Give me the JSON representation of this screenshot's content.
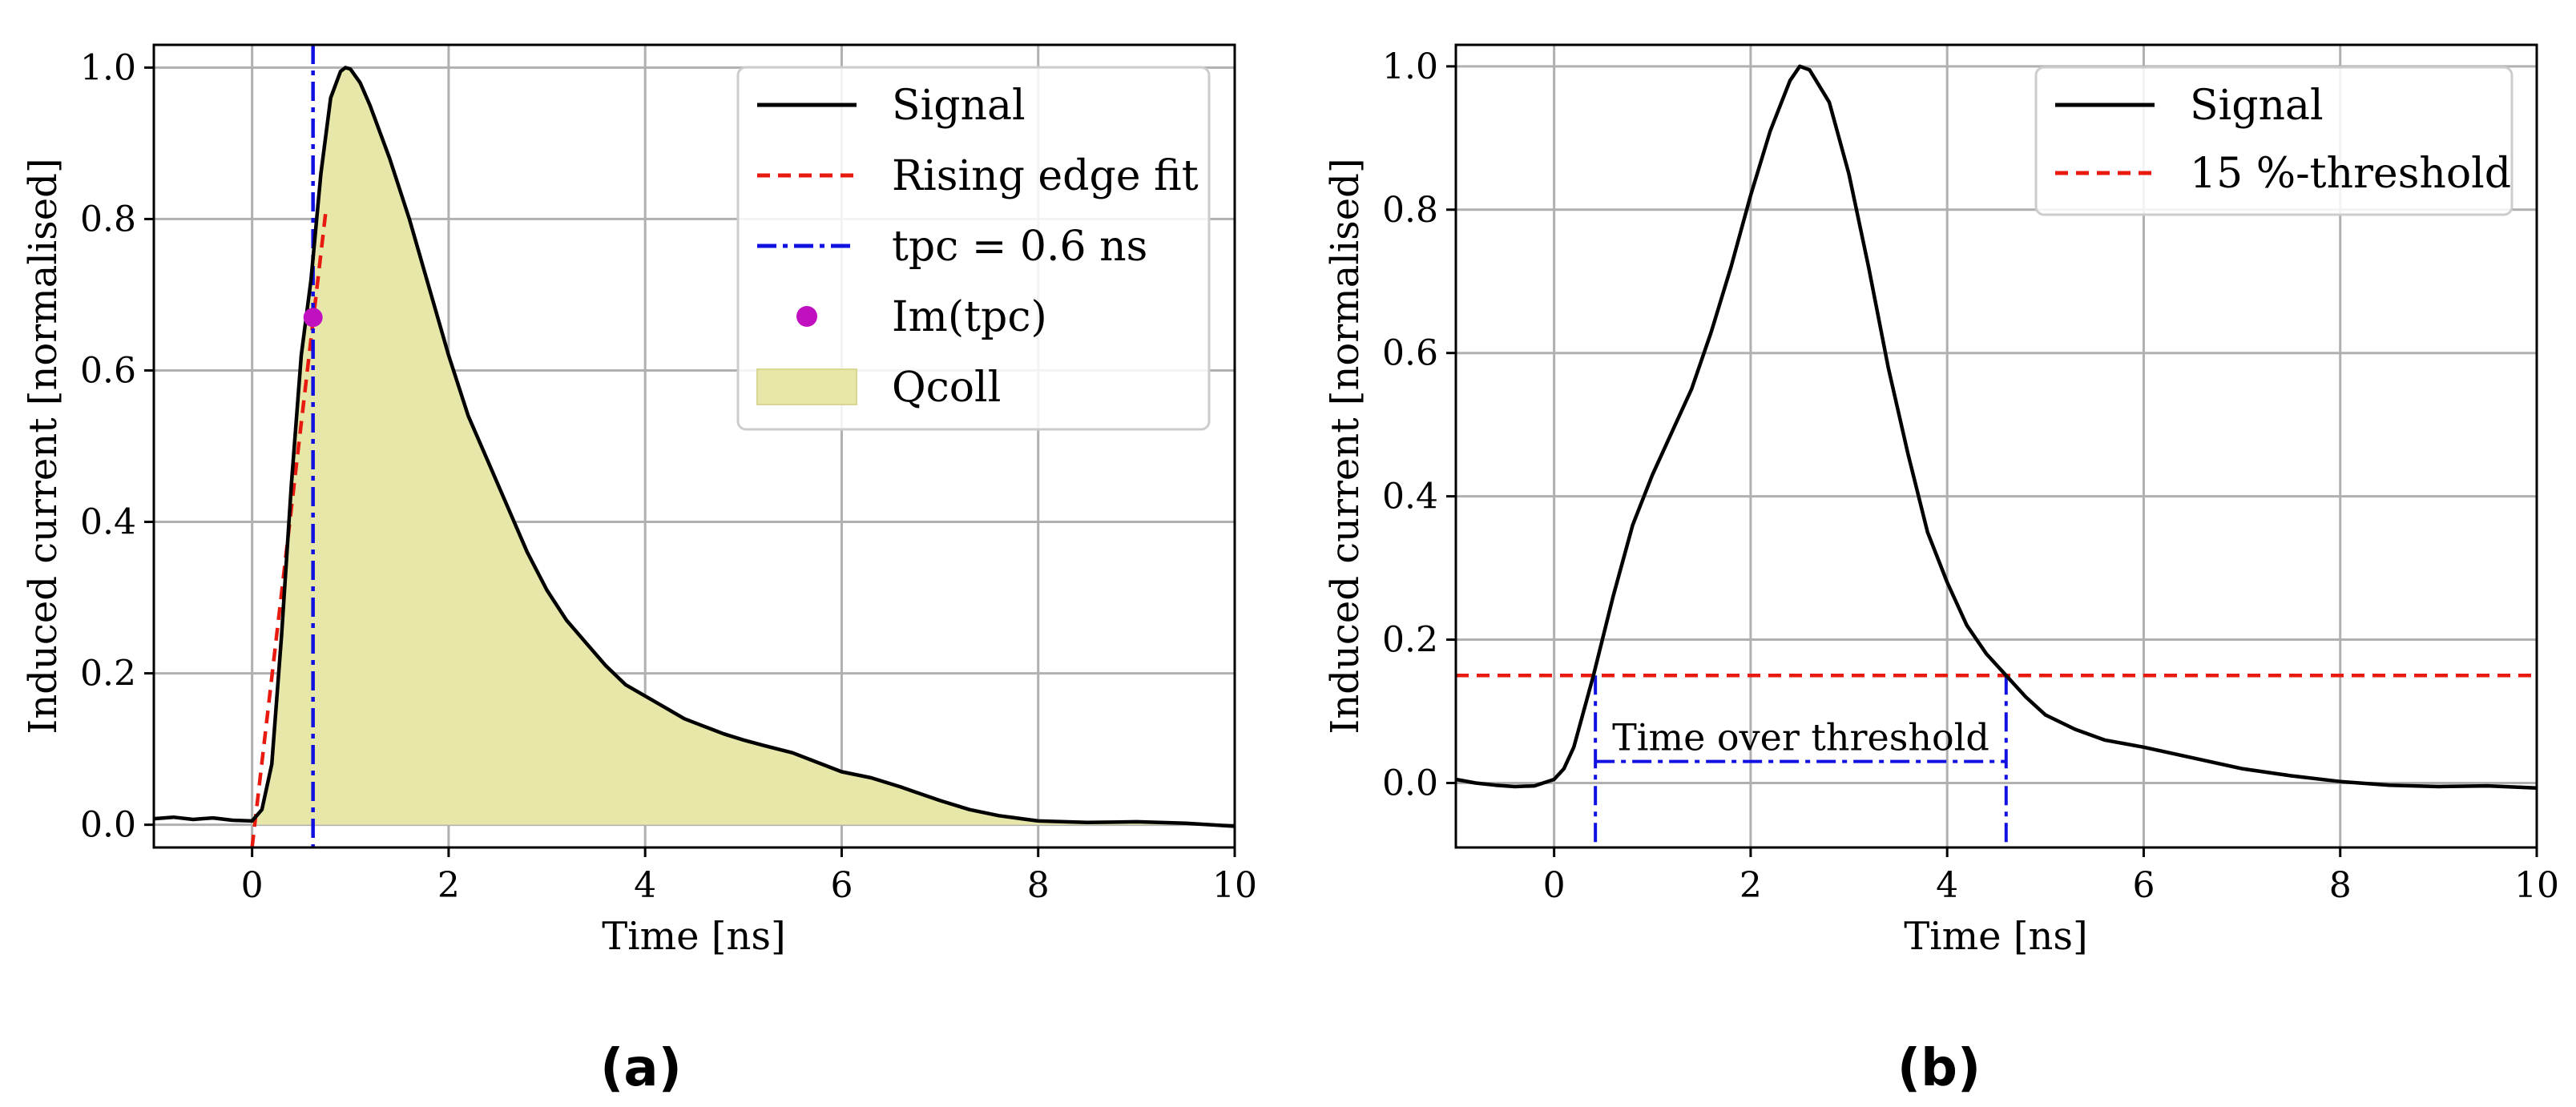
{
  "chart_data": [
    {
      "type": "line",
      "panel_label": "(a)",
      "xlabel": "Time [ns]",
      "ylabel": "Induced current [normalised]",
      "xlim": [
        -1,
        10
      ],
      "ylim": [
        -0.03,
        1.03
      ],
      "xticks": [
        0,
        2,
        4,
        6,
        8,
        10
      ],
      "yticks": [
        0.0,
        0.2,
        0.4,
        0.6,
        0.8,
        1.0
      ],
      "xtick_labels": [
        "0",
        "2",
        "4",
        "6",
        "8",
        "10"
      ],
      "ytick_labels": [
        "0.0",
        "0.2",
        "0.4",
        "0.6",
        "0.8",
        "1.0"
      ],
      "grid": true,
      "legend_position": "top-right",
      "series": [
        {
          "name": "Signal",
          "style": "solid",
          "color": "#000000",
          "x": [
            -1,
            -0.8,
            -0.6,
            -0.4,
            -0.2,
            0.0,
            0.1,
            0.2,
            0.3,
            0.4,
            0.5,
            0.6,
            0.7,
            0.8,
            0.9,
            0.95,
            1.0,
            1.1,
            1.2,
            1.4,
            1.6,
            1.8,
            2.0,
            2.2,
            2.4,
            2.6,
            2.8,
            3.0,
            3.2,
            3.4,
            3.6,
            3.8,
            4.0,
            4.2,
            4.4,
            4.6,
            4.8,
            5.0,
            5.2,
            5.5,
            5.8,
            6.0,
            6.3,
            6.6,
            7.0,
            7.3,
            7.6,
            8.0,
            8.5,
            9.0,
            9.5,
            10.0
          ],
          "y": [
            0.008,
            0.01,
            0.007,
            0.009,
            0.006,
            0.005,
            0.02,
            0.08,
            0.25,
            0.45,
            0.62,
            0.72,
            0.86,
            0.96,
            0.995,
            1.0,
            0.998,
            0.98,
            0.95,
            0.88,
            0.8,
            0.71,
            0.62,
            0.54,
            0.48,
            0.42,
            0.36,
            0.31,
            0.27,
            0.24,
            0.21,
            0.185,
            0.17,
            0.155,
            0.14,
            0.13,
            0.12,
            0.112,
            0.105,
            0.095,
            0.08,
            0.07,
            0.062,
            0.05,
            0.032,
            0.02,
            0.012,
            0.005,
            0.003,
            0.004,
            0.002,
            -0.002
          ]
        },
        {
          "name": "Rising edge fit",
          "style": "dashed",
          "color": "#e8190f",
          "x": [
            0.0,
            0.75
          ],
          "y": [
            -0.03,
            0.81
          ]
        }
      ],
      "fill": {
        "name": "Q_coll",
        "legend_label": "Qcoll",
        "color": "#e8e7aa",
        "under": "Signal"
      },
      "vline": {
        "name": "t_pc = 0.6 ns",
        "legend_label": "tpc = 0.6 ns",
        "x": 0.62,
        "style": "dashdot",
        "color": "#1010e0"
      },
      "marker": {
        "name": "I_m(t_pc)",
        "legend_label": "Im(tpc)",
        "x": 0.62,
        "y": 0.67,
        "color": "#c010c0"
      },
      "legend": [
        {
          "label": "Signal",
          "kind": "line-solid",
          "color": "#000000"
        },
        {
          "label": "Rising edge fit",
          "kind": "line-dashed",
          "color": "#e8190f"
        },
        {
          "label": "tpc = 0.6 ns",
          "kind": "line-dashdot",
          "color": "#1010e0"
        },
        {
          "label": "Im(tpc)",
          "kind": "marker",
          "color": "#c010c0"
        },
        {
          "label": "Qcoll",
          "kind": "fill",
          "color": "#e8e7aa"
        }
      ]
    },
    {
      "type": "line",
      "panel_label": "(b)",
      "xlabel": "Time [ns]",
      "ylabel": "Induced current [normalised]",
      "xlim": [
        -1,
        10
      ],
      "ylim": [
        -0.09,
        1.03
      ],
      "xticks": [
        0,
        2,
        4,
        6,
        8,
        10
      ],
      "yticks": [
        0.0,
        0.2,
        0.4,
        0.6,
        0.8,
        1.0
      ],
      "xtick_labels": [
        "0",
        "2",
        "4",
        "6",
        "8",
        "10"
      ],
      "ytick_labels": [
        "0.0",
        "0.2",
        "0.4",
        "0.6",
        "0.8",
        "1.0"
      ],
      "grid": true,
      "legend_position": "top-right",
      "series": [
        {
          "name": "Signal",
          "style": "solid",
          "color": "#000000",
          "x": [
            -1,
            -0.8,
            -0.6,
            -0.4,
            -0.2,
            0.0,
            0.1,
            0.2,
            0.4,
            0.6,
            0.8,
            1.0,
            1.2,
            1.4,
            1.6,
            1.8,
            2.0,
            2.2,
            2.4,
            2.5,
            2.6,
            2.8,
            3.0,
            3.2,
            3.4,
            3.6,
            3.8,
            4.0,
            4.2,
            4.4,
            4.6,
            4.8,
            5.0,
            5.3,
            5.6,
            6.0,
            6.5,
            7.0,
            7.5,
            8.0,
            8.5,
            9.0,
            9.5,
            10.0
          ],
          "y": [
            0.005,
            0.0,
            -0.003,
            -0.005,
            -0.004,
            0.005,
            0.02,
            0.05,
            0.15,
            0.26,
            0.36,
            0.43,
            0.49,
            0.55,
            0.63,
            0.72,
            0.82,
            0.91,
            0.98,
            1.0,
            0.995,
            0.95,
            0.85,
            0.72,
            0.58,
            0.46,
            0.35,
            0.28,
            0.22,
            0.18,
            0.15,
            0.12,
            0.095,
            0.075,
            0.06,
            0.05,
            0.035,
            0.02,
            0.01,
            0.002,
            -0.003,
            -0.005,
            -0.004,
            -0.007
          ]
        }
      ],
      "hline": {
        "name": "15%-threshold",
        "y": 0.15,
        "style": "dashed",
        "color": "#e8190f"
      },
      "tot_bracket": {
        "label": "Time over threshold",
        "x_start": 0.42,
        "x_end": 4.6,
        "y": 0.03,
        "style": "dashdot",
        "color": "#1010e0"
      },
      "legend": [
        {
          "label": "Signal",
          "kind": "line-solid",
          "color": "#000000"
        },
        {
          "label": "15 %-threshold",
          "kind": "line-dashed",
          "color": "#e8190f"
        }
      ]
    }
  ]
}
